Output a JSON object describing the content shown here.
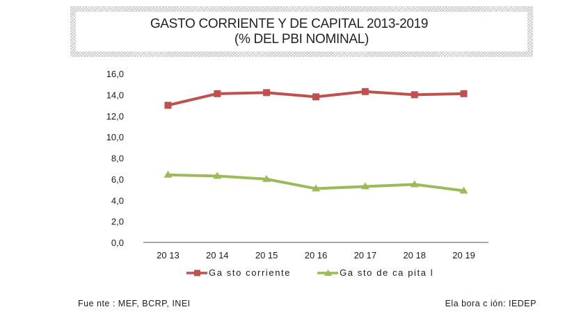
{
  "chart_data": {
    "type": "line",
    "title": "GASTO CORRIENTE Y DE CAPITAL 2013-2019",
    "subtitle": "(% DEL PBI NOMINAL)",
    "xlabel": "",
    "ylabel": "",
    "categories": [
      "2013",
      "2014",
      "2015",
      "2016",
      "2017",
      "2018",
      "2019"
    ],
    "category_labels": [
      "20 13",
      "20 14",
      "20 15",
      "20 16",
      "20 17",
      "20 18",
      "20 19"
    ],
    "ylim": [
      0,
      16
    ],
    "yticks": [
      0,
      2,
      4,
      6,
      8,
      10,
      12,
      14,
      16
    ],
    "ytick_labels": [
      "0,0",
      "2,0",
      "4,0",
      "6,0",
      "8,0",
      "10,0",
      "12,0",
      "14,0",
      "16,0"
    ],
    "grid": false,
    "legend_position": "bottom",
    "series": [
      {
        "name": "Gasto corriente",
        "legend_label": "Ga sto corriente",
        "color": "#c0504d",
        "marker": "square",
        "values": [
          13.0,
          14.1,
          14.2,
          13.8,
          14.3,
          14.0,
          14.1
        ]
      },
      {
        "name": "Gasto de capital",
        "legend_label": "Ga sto de ca pita l",
        "color": "#9bbb59",
        "marker": "triangle",
        "values": [
          6.4,
          6.3,
          6.0,
          5.1,
          5.3,
          5.5,
          4.9
        ]
      }
    ]
  },
  "footer": {
    "source": "Fue nte : MEF, BCRP, INEI",
    "credit": "Ela bora c ión: IEDEP"
  }
}
